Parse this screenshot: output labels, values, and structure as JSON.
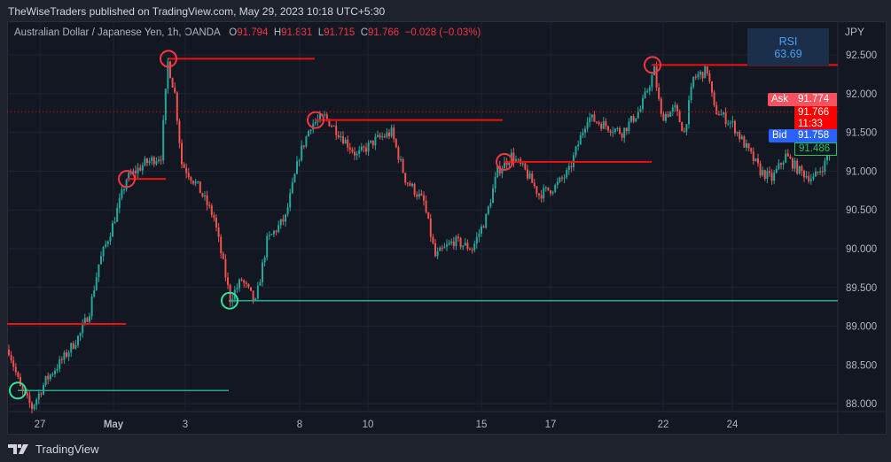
{
  "header": {
    "published": "TheWiseTraders published on TradingView.com, May 29, 2023 10:18 UTC+5:30"
  },
  "legend": {
    "symbol": "Australian Dollar / Japanese Yen, 1h, OANDA",
    "o_label": "O",
    "o": "91.794",
    "h_label": "H",
    "h": "91.831",
    "l_label": "L",
    "l": "91.715",
    "c_label": "C",
    "c": "91.766",
    "change": "−0.028 (−0.03%)"
  },
  "indicator": {
    "name": "RSI",
    "value": "63.69"
  },
  "price_axis": {
    "currency": "JPY",
    "ticks": [
      "92.500",
      "92.000",
      "91.500",
      "91.000",
      "90.500",
      "90.000",
      "89.500",
      "89.000",
      "88.500",
      "88.000"
    ],
    "ask_label": "Ask",
    "ask": "91.774",
    "last": "91.766",
    "countdown": "11:33",
    "bid_label": "Bid",
    "bid": "91.758",
    "marker": "91.486"
  },
  "time_axis": {
    "ticks": [
      "27",
      "May",
      "3",
      "8",
      "10",
      "15",
      "17",
      "22",
      "24"
    ]
  },
  "brand": {
    "name": "TradingView"
  },
  "colors": {
    "up": "#26a69a",
    "down": "#ef5350",
    "red_line": "#f20f0f",
    "teal_line": "#22ab94",
    "background": "#131722"
  },
  "chart_data": {
    "type": "candlestick",
    "ylim": [
      87.85,
      92.85
    ],
    "price_path": [
      [
        0,
        88.7
      ],
      [
        5,
        88.2
      ],
      [
        10,
        87.95
      ],
      [
        16,
        88.3
      ],
      [
        24,
        88.6
      ],
      [
        31,
        88.9
      ],
      [
        35,
        89.2
      ],
      [
        39,
        89.8
      ],
      [
        45,
        90.3
      ],
      [
        51,
        90.9
      ],
      [
        59,
        91.1
      ],
      [
        66,
        91.2
      ],
      [
        69,
        92.4
      ],
      [
        72,
        92.0
      ],
      [
        75,
        91.1
      ],
      [
        82,
        90.8
      ],
      [
        89,
        90.4
      ],
      [
        96,
        89.35
      ],
      [
        101,
        89.6
      ],
      [
        107,
        89.3
      ],
      [
        112,
        90.1
      ],
      [
        120,
        90.4
      ],
      [
        126,
        91.2
      ],
      [
        131,
        91.6
      ],
      [
        137,
        91.7
      ],
      [
        143,
        91.5
      ],
      [
        151,
        91.2
      ],
      [
        159,
        91.4
      ],
      [
        166,
        91.5
      ],
      [
        172,
        90.9
      ],
      [
        180,
        90.6
      ],
      [
        185,
        89.9
      ],
      [
        193,
        90.1
      ],
      [
        201,
        90.0
      ],
      [
        207,
        90.4
      ],
      [
        212,
        91.0
      ],
      [
        218,
        91.2
      ],
      [
        224,
        91.0
      ],
      [
        230,
        90.7
      ],
      [
        237,
        90.8
      ],
      [
        243,
        91.0
      ],
      [
        251,
        91.7
      ],
      [
        258,
        91.6
      ],
      [
        266,
        91.5
      ],
      [
        274,
        91.8
      ],
      [
        280,
        92.3
      ],
      [
        283,
        91.7
      ],
      [
        289,
        91.8
      ],
      [
        293,
        91.5
      ],
      [
        297,
        92.2
      ],
      [
        303,
        92.3
      ],
      [
        306,
        91.8
      ],
      [
        314,
        91.6
      ],
      [
        320,
        91.3
      ],
      [
        326,
        91.0
      ],
      [
        331,
        90.9
      ],
      [
        337,
        91.2
      ],
      [
        343,
        91.0
      ],
      [
        349,
        90.9
      ],
      [
        354,
        91.1
      ],
      [
        358,
        91.48
      ]
    ],
    "resistance_levels": [
      92.45,
      91.66,
      91.12,
      92.37,
      90.9,
      89.03
    ],
    "support_levels": [
      88.17,
      89.33
    ]
  }
}
